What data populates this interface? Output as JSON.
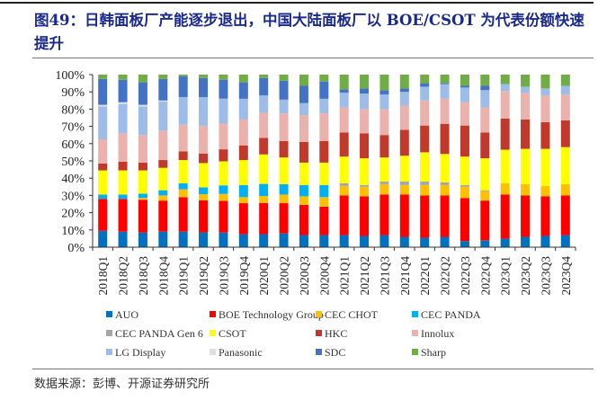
{
  "figure": {
    "title": "图49：日韩面板厂产能逐步退出，中国大陆面板厂以 BOE/CSOT 为代表份额快速提升",
    "source": "数据来源：彭博、开源证券研究所"
  },
  "chart_data": {
    "type": "bar",
    "stacked": true,
    "normalized": true,
    "title": "图49：日韩面板厂产能逐步退出，中国大陆面板厂以 BOE/CSOT 为代表份额快速提升",
    "xlabel": "",
    "ylabel": "",
    "ylim": [
      0,
      100
    ],
    "yticks": [
      "0%",
      "10%",
      "20%",
      "30%",
      "40%",
      "50%",
      "60%",
      "70%",
      "80%",
      "90%",
      "100%"
    ],
    "legend_position": "bottom",
    "grid": false,
    "categories": [
      "2018Q1",
      "2018Q2",
      "2018Q3",
      "2018Q4",
      "2019Q1",
      "2019Q2",
      "2019Q3",
      "2019Q4",
      "2020Q1",
      "2020Q2",
      "2020Q3",
      "2020Q4",
      "2021Q1",
      "2021Q2",
      "2021Q3",
      "2021Q4",
      "2022Q1",
      "2022Q2",
      "2022Q3",
      "2022Q4",
      "2023Q1",
      "2023Q2",
      "2023Q3",
      "2023Q4"
    ],
    "series": [
      {
        "name": "AUO",
        "color": "#0070c0",
        "values": [
          9.5,
          9,
          8.5,
          9,
          9,
          8.5,
          8.5,
          7.5,
          7.5,
          8,
          7,
          7,
          7,
          6.5,
          7,
          6,
          5.5,
          6,
          3.5,
          4,
          5,
          6,
          6.5,
          7
        ]
      },
      {
        "name": "BOE Technology Group",
        "color": "#ff0000",
        "values": [
          18.5,
          19,
          19,
          18,
          20,
          18.5,
          18.5,
          18,
          18,
          17.5,
          17.5,
          16.5,
          23,
          23,
          23.5,
          24.5,
          24.5,
          24,
          25,
          23,
          25.5,
          24,
          23,
          23
        ]
      },
      {
        "name": "CEC CHOT",
        "color": "#ffc000",
        "values": [
          0,
          0,
          1,
          3,
          4.5,
          3.5,
          4,
          3.5,
          4,
          5,
          5,
          5.5,
          5.5,
          5.5,
          6,
          5.5,
          6,
          6,
          6.5,
          5.5,
          6.5,
          6.5,
          6,
          6.5
        ]
      },
      {
        "name": "CEC PANDA",
        "color": "#00b0f0",
        "values": [
          2.5,
          2.5,
          2.5,
          3,
          3.5,
          4,
          5,
          7,
          7,
          6,
          6.5,
          7,
          0,
          0,
          0,
          0,
          0,
          0,
          0,
          0,
          0,
          0,
          0,
          0
        ]
      },
      {
        "name": "CEC PANDA Gen 6",
        "color": "#a5a5a5",
        "values": [
          0,
          0,
          0,
          0,
          0,
          0,
          0,
          0,
          0,
          0,
          0,
          0,
          1.5,
          1,
          1.5,
          2,
          2,
          1.5,
          1,
          0.5,
          0,
          0,
          0,
          0
        ]
      },
      {
        "name": "CSOT",
        "color": "#ffff00",
        "values": [
          14,
          14,
          13.5,
          13,
          13.5,
          14,
          14,
          14.5,
          17,
          15.5,
          13,
          13,
          15.5,
          15.5,
          14,
          15,
          17,
          16.5,
          16.5,
          18.5,
          19.5,
          20.5,
          21.5,
          21.5
        ]
      },
      {
        "name": "HKC",
        "color": "#c0392b",
        "values": [
          4,
          5,
          4.5,
          4.5,
          5,
          5.5,
          7,
          8.5,
          9.5,
          9.5,
          12,
          12.5,
          14,
          14.5,
          13,
          15,
          15.5,
          17.5,
          18,
          15,
          18,
          17,
          15.5,
          15.5
        ]
      },
      {
        "name": "Innolux",
        "color": "#ebb1ad",
        "values": [
          14,
          16.5,
          16,
          17,
          15.5,
          16,
          15,
          15,
          14.5,
          16,
          15.5,
          16,
          14.5,
          14,
          15,
          14,
          14.5,
          14.5,
          13.5,
          14.5,
          16,
          15.5,
          15.5,
          15
        ]
      },
      {
        "name": "LG Display",
        "color": "#9dbde8",
        "values": [
          19,
          17,
          16.5,
          17,
          16,
          16.5,
          14.5,
          12,
          10,
          8,
          7,
          8.5,
          8.5,
          9,
          8.5,
          8,
          8,
          8.5,
          8.5,
          10,
          4,
          3.5,
          4,
          5
        ]
      },
      {
        "name": "Panasonic",
        "color": "#e0e0e0",
        "values": [
          1,
          1,
          1,
          0.5,
          0,
          0,
          0,
          0,
          0,
          0,
          0,
          0,
          0,
          0,
          0,
          0,
          0,
          0,
          0,
          0,
          0,
          0,
          0,
          0
        ]
      },
      {
        "name": "SDC",
        "color": "#4472c4",
        "values": [
          15,
          13,
          13,
          12.5,
          12,
          11,
          11,
          9.5,
          10,
          11,
          10,
          10,
          2,
          3,
          2.5,
          2,
          2,
          0.5,
          1,
          2.5,
          0,
          0,
          0,
          0
        ]
      },
      {
        "name": "Sharp",
        "color": "#70ad47",
        "values": [
          2.5,
          3,
          4.5,
          2.5,
          1,
          2,
          3,
          4.5,
          2,
          3.5,
          6.5,
          4,
          8.5,
          8,
          9,
          8,
          5,
          5,
          6.5,
          6.5,
          5.5,
          7,
          8,
          6.5
        ]
      }
    ]
  }
}
